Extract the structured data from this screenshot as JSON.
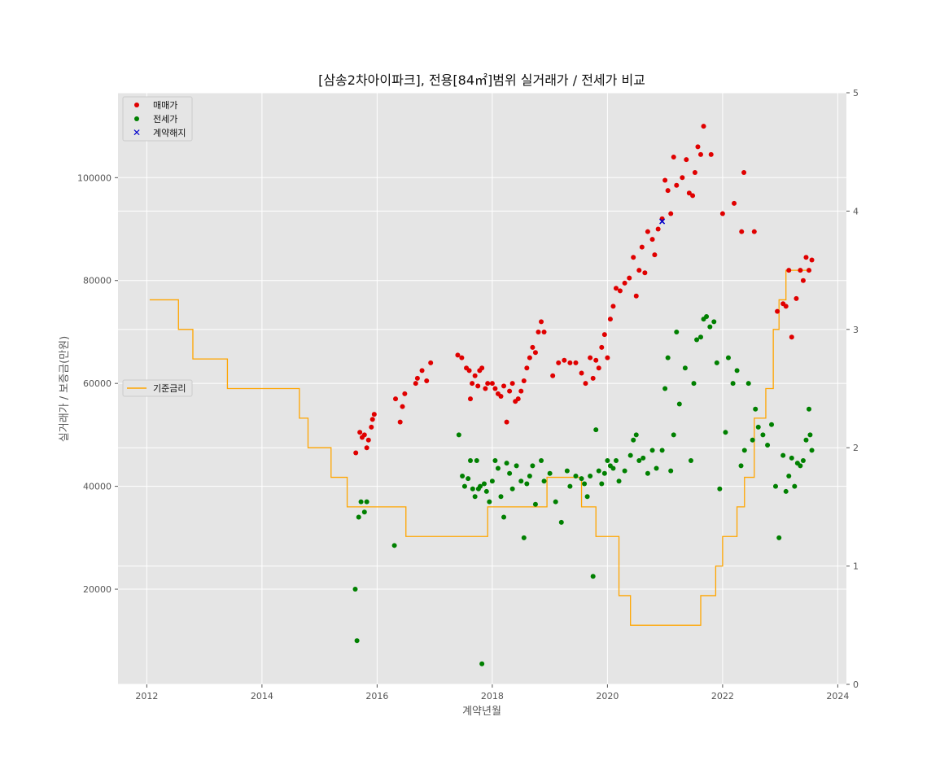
{
  "chart_data": {
    "type": "scatter",
    "title": "[삼송2차아이파크], 전용[84㎡]범위 실거래가 / 전세가 비교",
    "xlabel": "계약년월",
    "ylabel": "실거래가 / 보증금(만원)",
    "xlim": [
      2011.5,
      2024.15
    ],
    "ylim": [
      1500,
      116500
    ],
    "y2lim": [
      0,
      5
    ],
    "xticks": [
      2012,
      2014,
      2016,
      2018,
      2020,
      2022,
      2024
    ],
    "yticks": [
      20000,
      40000,
      60000,
      80000,
      100000
    ],
    "y2ticks": [
      0,
      1,
      2,
      3,
      4,
      5
    ],
    "grid": true,
    "legend_placement": "upper-left",
    "legend2_placement": "center-left",
    "colors": {
      "sale": "#e00000",
      "jeonse": "#008000",
      "cancel": "#0000cc",
      "rate": "#ffa500",
      "plot_bg": "#e5e5e5",
      "grid": "#ffffff"
    },
    "series": [
      {
        "name": "매매가",
        "marker": "circle",
        "color": "#e00000",
        "x": [
          2015.63,
          2015.7,
          2015.74,
          2015.78,
          2015.82,
          2015.85,
          2015.9,
          2015.92,
          2015.95,
          2016.32,
          2016.4,
          2016.44,
          2016.48,
          2016.67,
          2016.7,
          2016.78,
          2016.86,
          2016.93,
          2017.4,
          2017.47,
          2017.55,
          2017.6,
          2017.62,
          2017.65,
          2017.7,
          2017.75,
          2017.78,
          2017.82,
          2017.88,
          2017.92,
          2018.0,
          2018.05,
          2018.1,
          2018.15,
          2018.2,
          2018.25,
          2018.3,
          2018.35,
          2018.4,
          2018.45,
          2018.5,
          2018.55,
          2018.6,
          2018.65,
          2018.7,
          2018.75,
          2018.8,
          2018.85,
          2018.9,
          2019.05,
          2019.15,
          2019.25,
          2019.35,
          2019.45,
          2019.55,
          2019.62,
          2019.7,
          2019.75,
          2019.8,
          2019.85,
          2019.9,
          2019.95,
          2020.0,
          2020.05,
          2020.1,
          2020.15,
          2020.22,
          2020.3,
          2020.38,
          2020.45,
          2020.5,
          2020.55,
          2020.6,
          2020.65,
          2020.7,
          2020.78,
          2020.82,
          2020.88,
          2020.95,
          2021.0,
          2021.05,
          2021.1,
          2021.15,
          2021.2,
          2021.3,
          2021.37,
          2021.42,
          2021.48,
          2021.52,
          2021.57,
          2021.62,
          2021.67,
          2021.8,
          2022.0,
          2022.2,
          2022.33,
          2022.37,
          2022.55,
          2022.95,
          2023.05,
          2023.1,
          2023.15,
          2023.2,
          2023.28,
          2023.35,
          2023.4,
          2023.45,
          2023.5,
          2023.55
        ],
        "y": [
          46500,
          50500,
          49500,
          50000,
          47500,
          49000,
          51500,
          53000,
          54000,
          57000,
          52500,
          55500,
          58000,
          60000,
          61000,
          62500,
          60500,
          64000,
          65500,
          65000,
          63000,
          62500,
          57000,
          60000,
          61500,
          59500,
          62500,
          63000,
          59000,
          60000,
          60000,
          59000,
          58000,
          57500,
          59500,
          52500,
          58500,
          60000,
          56500,
          57000,
          58500,
          60500,
          63000,
          65000,
          67000,
          66000,
          70000,
          72000,
          70000,
          61500,
          64000,
          64500,
          64000,
          64000,
          62000,
          60000,
          65000,
          61000,
          64500,
          63000,
          67000,
          69500,
          65000,
          72500,
          75000,
          78500,
          78000,
          79500,
          80500,
          84500,
          77000,
          82000,
          86500,
          81500,
          89500,
          88000,
          85000,
          90000,
          92000,
          99500,
          97500,
          93000,
          104000,
          98500,
          100000,
          103500,
          97000,
          96500,
          101000,
          106000,
          104500,
          110000,
          104500,
          93000,
          95000,
          89500,
          101000,
          89500,
          74000,
          75500,
          75000,
          82000,
          69000,
          76500,
          82000,
          80000,
          84500,
          82000,
          84000
        ]
      },
      {
        "name": "전세가",
        "marker": "circle",
        "color": "#008000",
        "x": [
          2015.62,
          2015.65,
          2015.68,
          2015.72,
          2015.78,
          2015.82,
          2016.3,
          2017.42,
          2017.48,
          2017.52,
          2017.58,
          2017.62,
          2017.66,
          2017.7,
          2017.73,
          2017.76,
          2017.79,
          2017.82,
          2017.86,
          2017.9,
          2017.95,
          2018.0,
          2018.05,
          2018.1,
          2018.15,
          2018.2,
          2018.25,
          2018.3,
          2018.35,
          2018.42,
          2018.5,
          2018.55,
          2018.6,
          2018.65,
          2018.7,
          2018.75,
          2018.85,
          2018.9,
          2019.0,
          2019.1,
          2019.2,
          2019.3,
          2019.35,
          2019.45,
          2019.55,
          2019.6,
          2019.65,
          2019.7,
          2019.75,
          2019.8,
          2019.85,
          2019.9,
          2019.95,
          2020.0,
          2020.05,
          2020.1,
          2020.15,
          2020.2,
          2020.3,
          2020.4,
          2020.45,
          2020.5,
          2020.55,
          2020.62,
          2020.7,
          2020.78,
          2020.85,
          2020.95,
          2021.0,
          2021.05,
          2021.1,
          2021.15,
          2021.2,
          2021.25,
          2021.35,
          2021.45,
          2021.5,
          2021.55,
          2021.62,
          2021.67,
          2021.72,
          2021.78,
          2021.85,
          2021.9,
          2021.95,
          2022.05,
          2022.1,
          2022.18,
          2022.25,
          2022.32,
          2022.38,
          2022.45,
          2022.52,
          2022.57,
          2022.62,
          2022.7,
          2022.78,
          2022.85,
          2022.92,
          2022.98,
          2023.05,
          2023.1,
          2023.15,
          2023.2,
          2023.25,
          2023.3,
          2023.35,
          2023.4,
          2023.45,
          2023.5,
          2023.52,
          2023.55
        ],
        "y": [
          20000,
          10000,
          34000,
          37000,
          35000,
          37000,
          28500,
          50000,
          42000,
          40000,
          41500,
          45000,
          39500,
          38000,
          45000,
          39500,
          40000,
          5500,
          40500,
          39000,
          37000,
          41000,
          45000,
          43500,
          38000,
          34000,
          44500,
          42500,
          39500,
          44000,
          41000,
          30000,
          40500,
          42000,
          44000,
          36500,
          45000,
          41000,
          42500,
          37000,
          33000,
          43000,
          40000,
          42000,
          41500,
          40500,
          38000,
          42000,
          22500,
          51000,
          43000,
          40500,
          42500,
          45000,
          44000,
          43500,
          45000,
          41000,
          43000,
          46000,
          49000,
          50000,
          45000,
          45500,
          42500,
          47000,
          43500,
          47000,
          59000,
          65000,
          43000,
          50000,
          70000,
          56000,
          63000,
          45000,
          60000,
          68500,
          69000,
          72500,
          73000,
          71000,
          72000,
          64000,
          39500,
          50500,
          65000,
          60000,
          62500,
          44000,
          47000,
          60000,
          49000,
          55000,
          51500,
          50000,
          48000,
          52000,
          40000,
          30000,
          46000,
          39000,
          42000,
          45500,
          40000,
          44500,
          44000,
          45000,
          49000,
          55000,
          50000,
          47000
        ]
      },
      {
        "name": "계약해지",
        "marker": "x",
        "color": "#0000cc",
        "x": [
          2020.95
        ],
        "y": [
          91500
        ]
      }
    ],
    "rate_series": {
      "name": "기준금리",
      "type": "step",
      "color": "#ffa500",
      "x": [
        2012.05,
        2012.55,
        2012.8,
        2013.4,
        2014.65,
        2014.8,
        2015.2,
        2015.48,
        2016.5,
        2017.92,
        2018.95,
        2019.55,
        2019.8,
        2020.2,
        2020.4,
        2021.62,
        2021.88,
        2022.0,
        2022.25,
        2022.38,
        2022.55,
        2022.75,
        2022.88,
        2022.98,
        2023.1,
        2023.52
      ],
      "y": [
        3.25,
        3.0,
        2.75,
        2.5,
        2.25,
        2.0,
        1.75,
        1.5,
        1.25,
        1.5,
        1.75,
        1.5,
        1.25,
        0.75,
        0.5,
        0.75,
        1.0,
        1.25,
        1.5,
        1.75,
        2.25,
        2.5,
        3.0,
        3.25,
        3.5,
        3.5
      ]
    }
  }
}
